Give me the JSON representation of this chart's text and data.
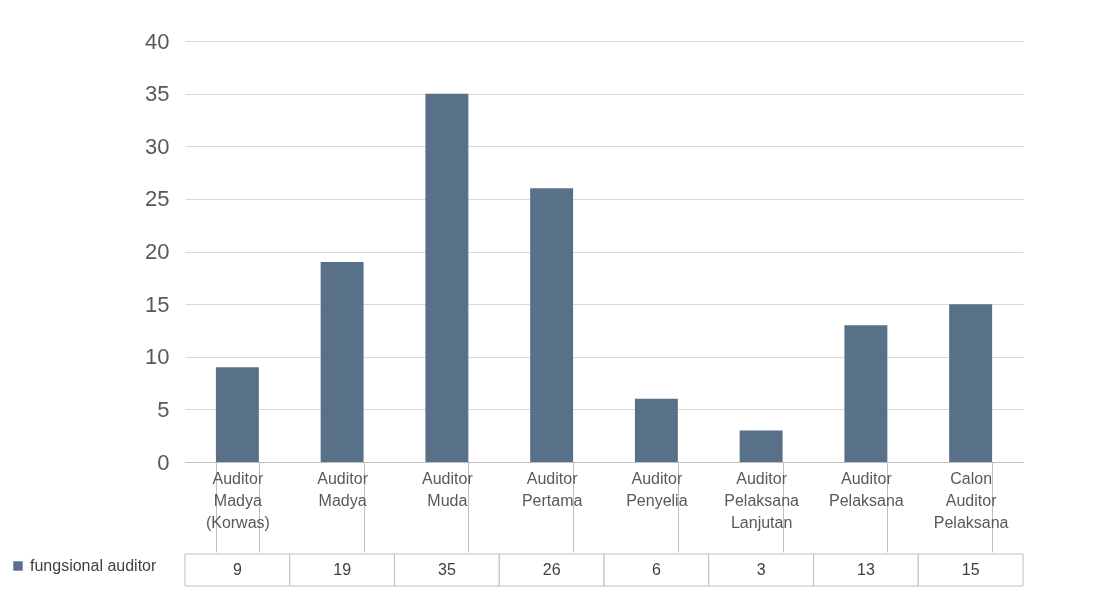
{
  "chart_data": {
    "type": "bar",
    "categories": [
      "Auditor Madya (Korwas)",
      "Auditor Madya",
      "Auditor Muda",
      "Auditor Pertama",
      "Auditor Penyelia",
      "Auditor Pelaksana Lanjutan",
      "Auditor Pelaksana",
      "Calon Auditor Pelaksana"
    ],
    "series": [
      {
        "name": "fungsional auditor",
        "color": "#587189",
        "values": [
          9,
          19,
          35,
          26,
          6,
          3,
          13,
          15
        ]
      }
    ],
    "ylim": [
      0,
      40
    ],
    "yticks": [
      0,
      5,
      10,
      15,
      20,
      25,
      30,
      35,
      40
    ],
    "grid": "y",
    "legend": "bottom left",
    "data_labels": true
  }
}
